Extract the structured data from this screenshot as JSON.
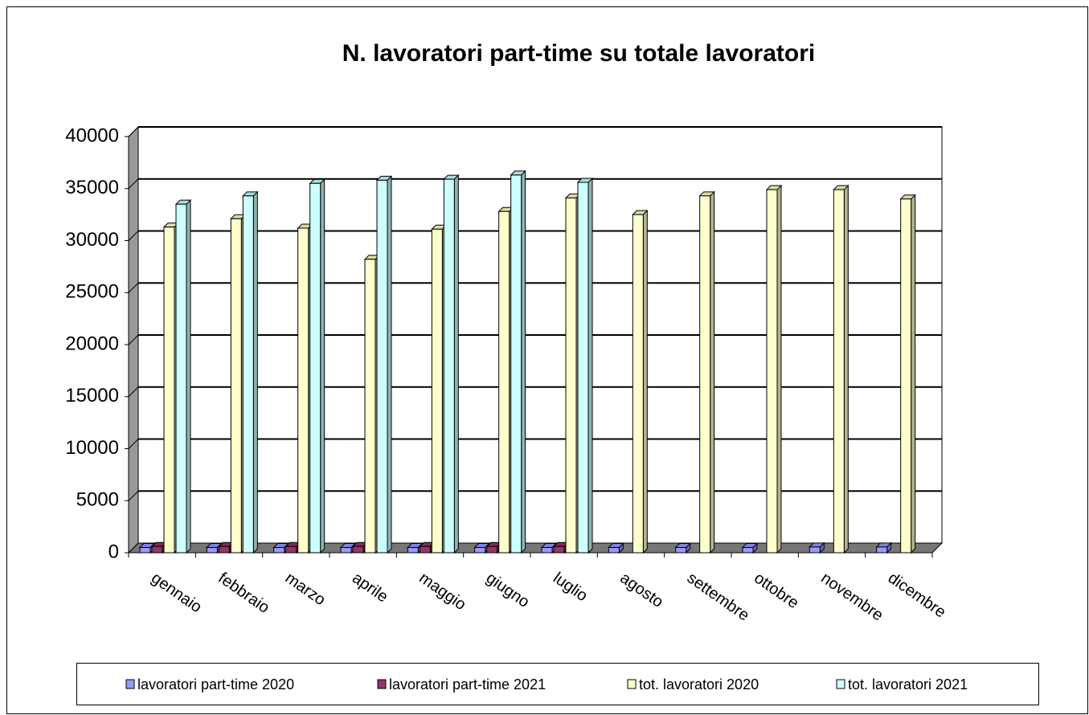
{
  "chart_data": {
    "type": "bar3d",
    "title": "N. lavoratori part-time su totale lavoratori",
    "categories": [
      "gennaio",
      "febbraio",
      "marzo",
      "aprile",
      "maggio",
      "giugno",
      "luglio",
      "agosto",
      "settembre",
      "ottobre",
      "novembre",
      "dicembre"
    ],
    "series": [
      {
        "name": "lavoratori part-time 2020",
        "color": "#9999ff",
        "values": [
          500,
          500,
          500,
          500,
          500,
          500,
          500,
          500,
          500,
          500,
          550,
          550
        ]
      },
      {
        "name": "lavoratori part-time 2021",
        "color": "#993366",
        "values": [
          600,
          600,
          600,
          600,
          600,
          600,
          600,
          null,
          null,
          null,
          null,
          null
        ]
      },
      {
        "name": "tot. lavoratori 2020",
        "color": "#ffffcc",
        "values": [
          31300,
          32100,
          31200,
          28200,
          31100,
          32800,
          34100,
          32500,
          34300,
          34900,
          34900,
          34000
        ]
      },
      {
        "name": "tot. lavoratori 2021",
        "color": "#ccffff",
        "values": [
          33500,
          34300,
          35500,
          35800,
          35900,
          36300,
          35600,
          null,
          null,
          null,
          null,
          null
        ]
      }
    ],
    "ylim": [
      0,
      40000
    ],
    "yticks": [
      0,
      5000,
      10000,
      15000,
      20000,
      25000,
      30000,
      35000,
      40000
    ],
    "grid": true,
    "legend": "bottom"
  }
}
